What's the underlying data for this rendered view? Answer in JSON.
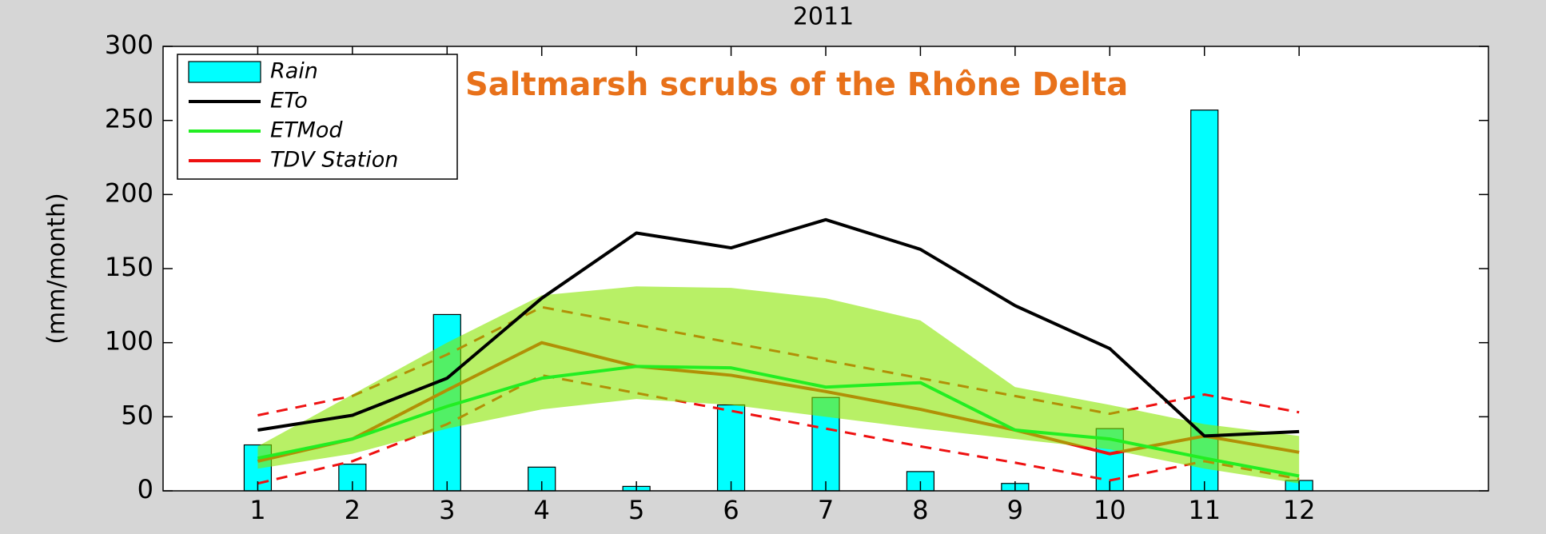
{
  "chart_data": {
    "type": "combo",
    "title": "2011",
    "annotation": "Saltmarsh scrubs of the Rhône Delta",
    "y_label": "(mm/month)",
    "x": [
      1,
      2,
      3,
      4,
      5,
      6,
      7,
      8,
      9,
      10,
      11,
      12
    ],
    "xlim": [
      0,
      14
    ],
    "xticks": [
      1,
      2,
      3,
      4,
      5,
      6,
      7,
      8,
      9,
      10,
      11,
      12
    ],
    "ylim": [
      0,
      300
    ],
    "yticks": [
      0,
      50,
      100,
      150,
      200,
      250,
      300
    ],
    "legend": "top-left",
    "series": [
      {
        "name": "Rain",
        "kind": "bar",
        "color": "#00ffff",
        "values": [
          31,
          18,
          119,
          16,
          3,
          58,
          63,
          13,
          5,
          42,
          257,
          7
        ]
      },
      {
        "name": "ETo",
        "kind": "line",
        "color": "#000000",
        "values": [
          41,
          51,
          76,
          130,
          174,
          164,
          183,
          163,
          125,
          96,
          37,
          40
        ]
      },
      {
        "name": "ETMod",
        "kind": "line",
        "color": "#22ee22",
        "values": [
          22,
          35,
          57,
          76,
          84,
          83,
          70,
          73,
          41,
          35,
          22,
          10
        ],
        "band_lower": [
          15,
          25,
          42,
          55,
          62,
          58,
          50,
          42,
          35,
          28,
          15,
          5
        ],
        "band_upper": [
          30,
          65,
          100,
          132,
          138,
          137,
          130,
          115,
          70,
          58,
          45,
          37
        ],
        "band_color": "#88e600"
      },
      {
        "name": "TDV Station",
        "kind": "line",
        "color": "#ee1111",
        "values": [
          20,
          35,
          68,
          100,
          84,
          78,
          67,
          55,
          41,
          25,
          37,
          26
        ],
        "upper": [
          51,
          64,
          92,
          124,
          112,
          100,
          88,
          76,
          64,
          52,
          65,
          53
        ],
        "lower": [
          5,
          20,
          45,
          78,
          66,
          54,
          42,
          30,
          19,
          7,
          20,
          8
        ]
      }
    ]
  }
}
